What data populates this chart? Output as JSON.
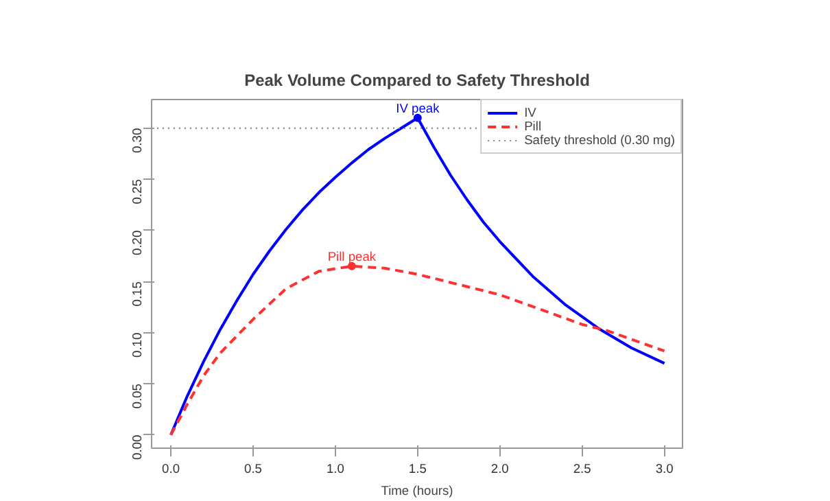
{
  "chart_data": {
    "type": "line",
    "title": "Peak Volume Compared to Safety Threshold",
    "xlabel": "Time (hours)",
    "xlim": [
      -0.117,
      3.11
    ],
    "ylim": [
      -0.013,
      0.328
    ],
    "xticks": [
      {
        "value": 0,
        "label": "0.0"
      },
      0.5,
      {
        "value": 1,
        "label": "1.0"
      },
      1.5,
      {
        "value": 2,
        "label": "2.0"
      },
      2.5,
      {
        "value": 3,
        "label": "3.0"
      }
    ],
    "yticks": [
      {
        "value": 0,
        "label": "0.00"
      },
      0.05,
      {
        "value": 0.1,
        "label": "0.10"
      },
      0.15,
      {
        "value": 0.2,
        "label": "0.20"
      },
      0.25,
      {
        "value": 0.3,
        "label": "0.30"
      }
    ],
    "grid": false,
    "legend": "top right",
    "series": [
      {
        "name": "IV",
        "type": "line",
        "color": "#0000ff",
        "line_style": "solid",
        "x": [
          0,
          0.1,
          0.2,
          0.3,
          0.4,
          0.5,
          0.6,
          0.7,
          0.8,
          0.9,
          1.0,
          1.1,
          1.2,
          1.3,
          1.4,
          1.5,
          1.6,
          1.7,
          1.8,
          1.9,
          2.0,
          2.2,
          2.4,
          2.6,
          2.8,
          3.0
        ],
        "values": [
          0,
          0.038,
          0.072,
          0.103,
          0.131,
          0.157,
          0.18,
          0.201,
          0.22,
          0.237,
          0.252,
          0.266,
          0.279,
          0.29,
          0.3,
          0.31,
          0.281,
          0.254,
          0.23,
          0.208,
          0.189,
          0.155,
          0.127,
          0.104,
          0.085,
          0.07
        ]
      },
      {
        "name": "Pill",
        "type": "line",
        "color": "#ff3030",
        "line_style": "dashed",
        "x": [
          0,
          0.1,
          0.2,
          0.3,
          0.5,
          0.7,
          0.9,
          1.1,
          1.3,
          1.5,
          2.0,
          2.5,
          2.65,
          3.0
        ],
        "values": [
          0,
          0.03,
          0.058,
          0.08,
          0.113,
          0.143,
          0.16,
          0.165,
          0.163,
          0.157,
          0.137,
          0.108,
          0.102,
          0.082
        ]
      },
      {
        "type": "scatter",
        "color": "#0000ff",
        "marker": "circle",
        "x": [
          1.5
        ],
        "values": [
          0.31
        ]
      },
      {
        "type": "scatter",
        "color": "#ff3030",
        "marker": "circle",
        "x": [
          1.1
        ],
        "values": [
          0.165
        ]
      }
    ],
    "ref_lines": [
      {
        "axis": "y",
        "value": 0.3,
        "label": "Safety threshold (0.30 mg)",
        "color": "#808080",
        "line_style": "dotted"
      }
    ],
    "annotations": [
      {
        "text": "IV peak",
        "x": 1.5,
        "y": 0.31
      },
      {
        "text": "Pill peak",
        "x": 1.1,
        "y": 0.165
      }
    ]
  }
}
